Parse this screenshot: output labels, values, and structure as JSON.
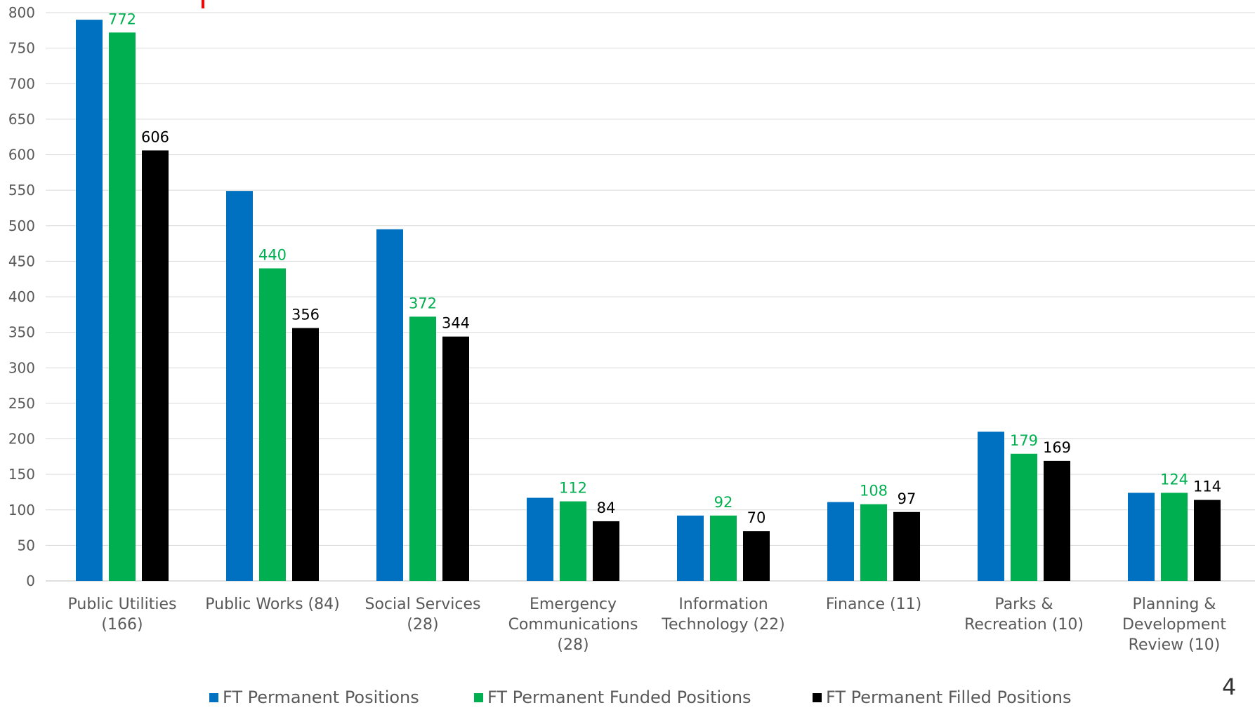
{
  "chart_data": {
    "type": "bar",
    "title": "",
    "xlabel": "",
    "ylabel": "",
    "ylim": [
      0,
      800
    ],
    "yticks": [
      0,
      50,
      100,
      150,
      200,
      250,
      300,
      350,
      400,
      450,
      500,
      550,
      600,
      650,
      700,
      750,
      800
    ],
    "grid": true,
    "legend_position": "bottom",
    "categories": [
      [
        "Public Utilities",
        "(166)"
      ],
      [
        "Public Works (84)"
      ],
      [
        "Social Services",
        "(28)"
      ],
      [
        "Emergency",
        "Communications",
        "(28)"
      ],
      [
        "Information",
        "Technology (22)"
      ],
      [
        "Finance (11)"
      ],
      [
        "Parks &",
        "Recreation (10)"
      ],
      [
        "Planning &",
        "Development",
        "Review (10)"
      ]
    ],
    "series": [
      {
        "name": "FT Permanent Positions",
        "color": "#0070C0",
        "values": [
          790,
          549,
          495,
          117,
          92,
          111,
          210,
          124
        ],
        "labels": [
          null,
          null,
          null,
          null,
          null,
          null,
          null,
          null
        ]
      },
      {
        "name": "FT Permanent Funded Positions",
        "color": "#00B050",
        "values": [
          772,
          440,
          372,
          112,
          92,
          108,
          179,
          124
        ],
        "labels": [
          "772",
          "440",
          "372",
          "112",
          "92",
          "108",
          "179",
          "124"
        ]
      },
      {
        "name": "FT Permanent Filled Positions",
        "color": "#000000",
        "values": [
          606,
          356,
          344,
          84,
          70,
          97,
          169,
          114
        ],
        "labels": [
          "606",
          "356",
          "344",
          "84",
          "70",
          "97",
          "169",
          "114"
        ]
      }
    ]
  },
  "page_number": "4"
}
